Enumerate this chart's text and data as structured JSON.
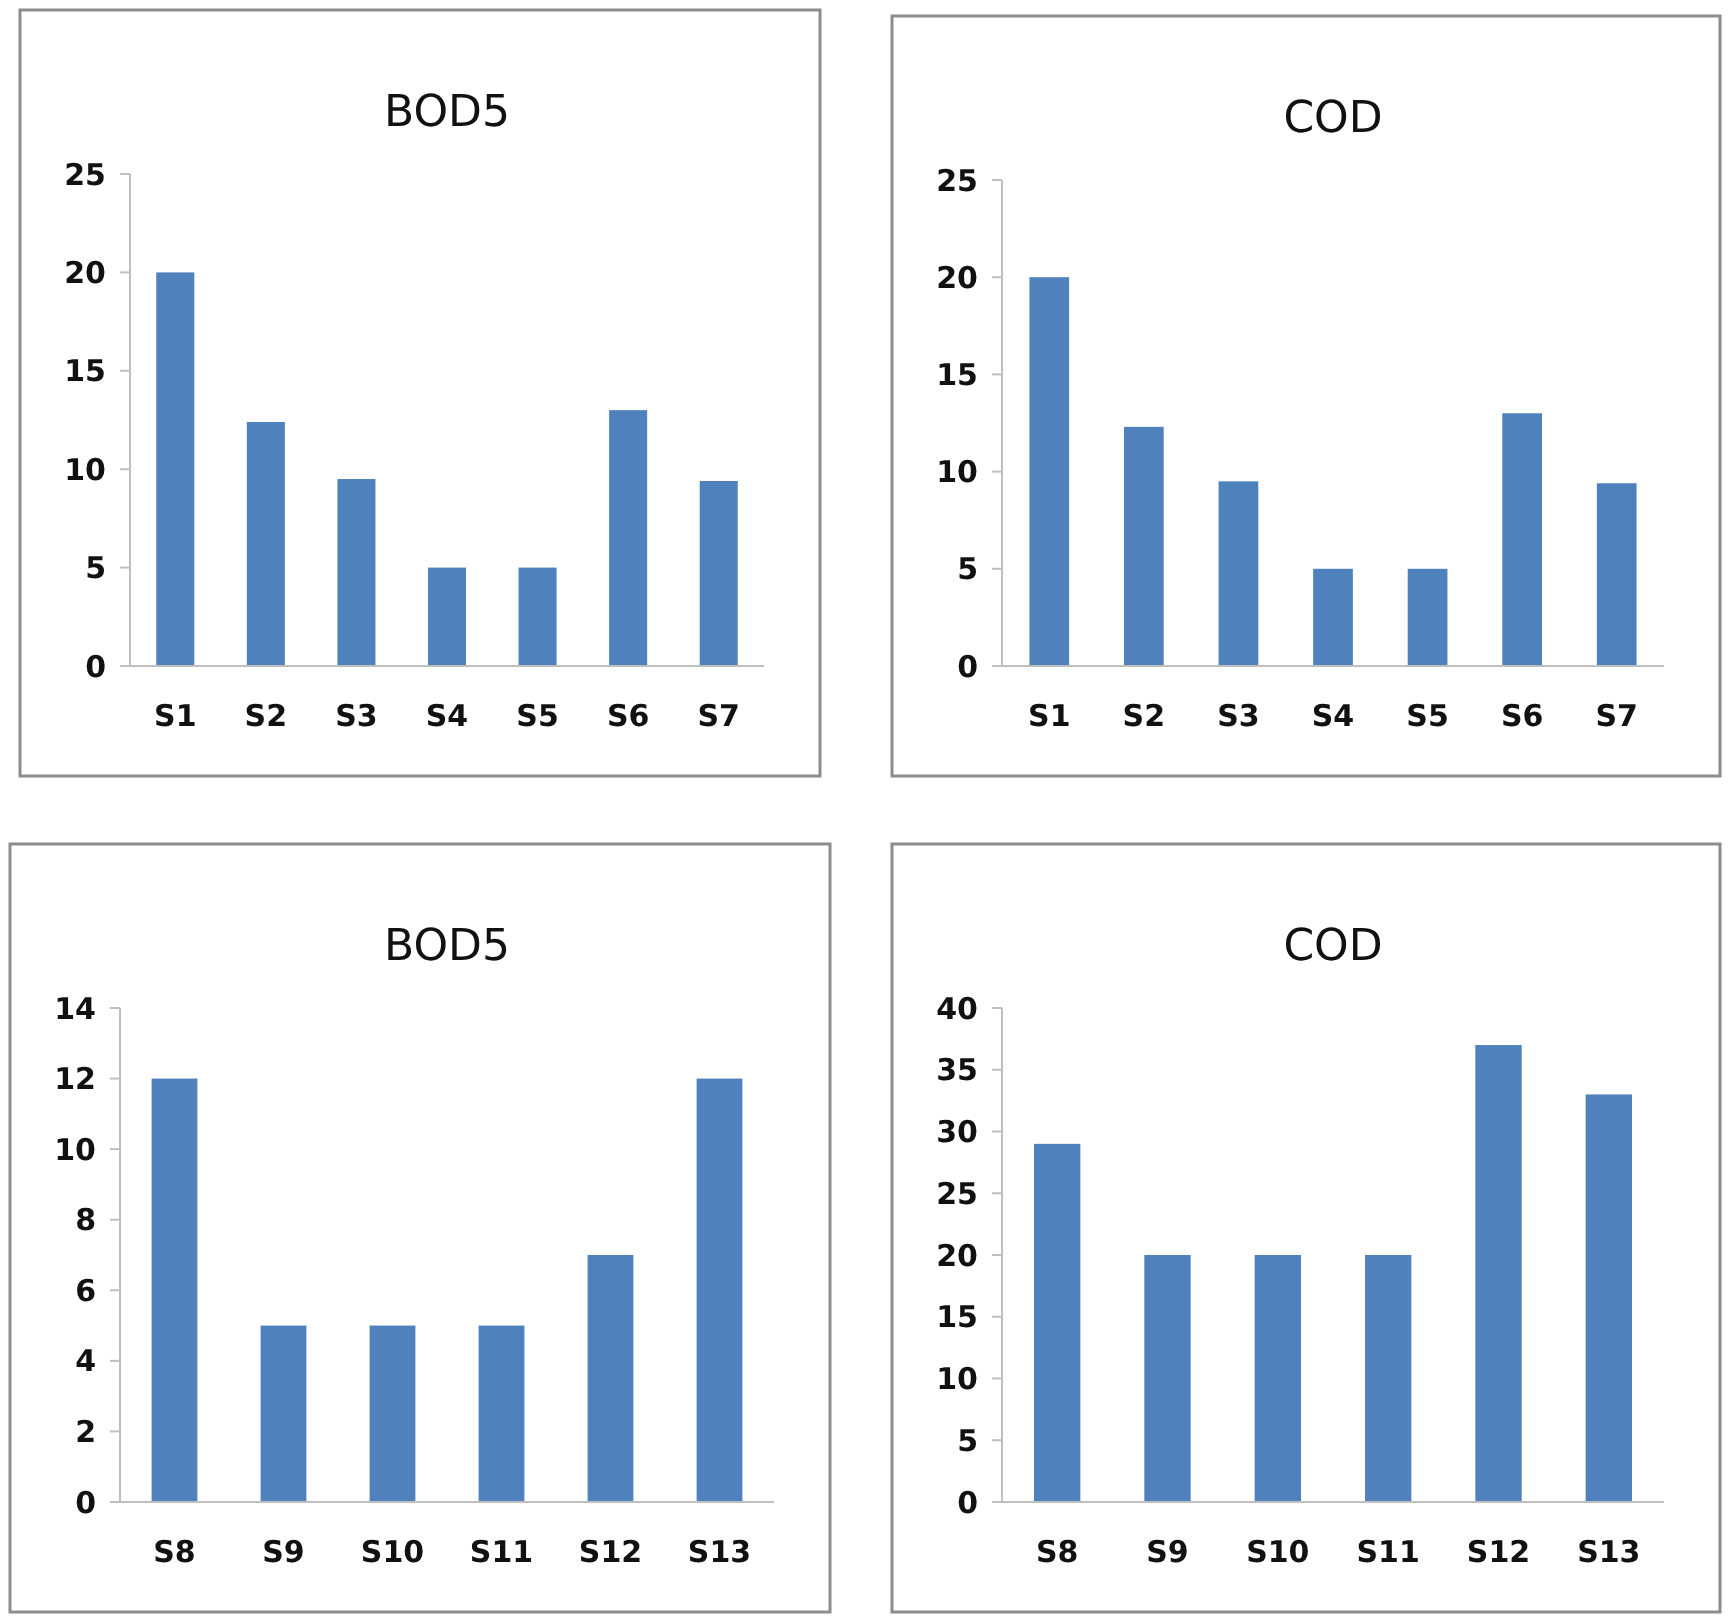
{
  "chart_data": [
    {
      "type": "bar",
      "title": "BOD5",
      "categories": [
        "S1",
        "S2",
        "S3",
        "S4",
        "S5",
        "S6",
        "S7"
      ],
      "values": [
        20,
        12.4,
        9.5,
        5,
        5,
        13,
        9.4
      ],
      "color": "#4f81bd",
      "ylim": [
        0,
        25
      ],
      "yticks": [
        0,
        5,
        10,
        15,
        20,
        25
      ],
      "grid": false
    },
    {
      "type": "bar",
      "title": "COD",
      "categories": [
        "S1",
        "S2",
        "S3",
        "S4",
        "S5",
        "S6",
        "S7"
      ],
      "values": [
        20,
        12.3,
        9.5,
        5,
        5,
        13,
        9.4
      ],
      "color": "#4f81bd",
      "ylim": [
        0,
        25
      ],
      "yticks": [
        0,
        5,
        10,
        15,
        20,
        25
      ],
      "grid": false
    },
    {
      "type": "bar",
      "title": "BOD5",
      "categories": [
        "S8",
        "S9",
        "S10",
        "S11",
        "S12",
        "S13"
      ],
      "values": [
        12,
        5,
        5,
        5,
        7,
        12
      ],
      "color": "#4f81bd",
      "ylim": [
        0,
        14
      ],
      "yticks": [
        0,
        2,
        4,
        6,
        8,
        10,
        12,
        14
      ],
      "grid": false
    },
    {
      "type": "bar",
      "title": "COD",
      "categories": [
        "S8",
        "S9",
        "S10",
        "S11",
        "S12",
        "S13"
      ],
      "values": [
        29,
        20,
        20,
        20,
        37,
        33
      ],
      "color": "#4f81bd",
      "ylim": [
        0,
        40
      ],
      "yticks": [
        0,
        5,
        10,
        15,
        20,
        25,
        30,
        35,
        40
      ],
      "grid": false
    }
  ]
}
